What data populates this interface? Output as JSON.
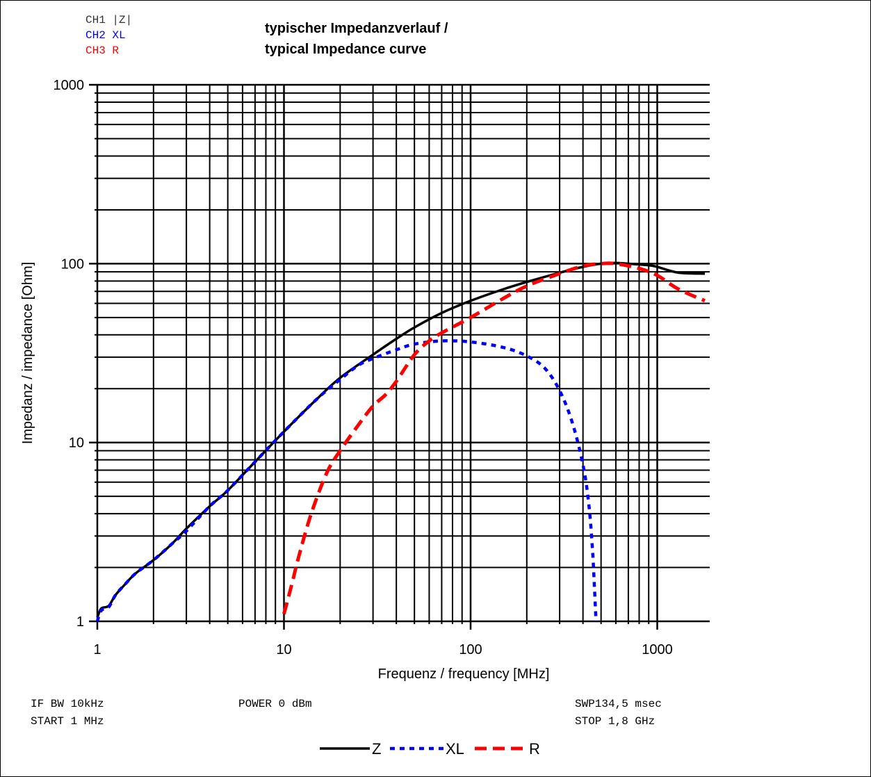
{
  "channels": {
    "ch1": "CH1 |Z|",
    "ch2": "CH2 XL",
    "ch3": "CH3 R"
  },
  "title_line1": "typischer Impedanzverlauf /",
  "title_line2": "typical Impedance curve",
  "settings": {
    "if_bw": "IF BW 10kHz",
    "start": "START 1 MHz",
    "power": "POWER 0 dBm",
    "sweep": "SWP134,5 msec",
    "stop": "STOP 1,8 GHz"
  },
  "colors": {
    "Z": "#000000",
    "XL": "#0000ff",
    "R": "#ff0000",
    "grid": "#000000"
  },
  "chart_data": {
    "type": "line",
    "title": "typischer Impedanzverlauf / typical Impedance curve",
    "xlabel": "Frequenz / frequency [MHz]",
    "ylabel": "Impedanz / impedance [Ohm]",
    "xscale": "log",
    "yscale": "log",
    "xlim": [
      1,
      1800
    ],
    "ylim": [
      1,
      1000
    ],
    "x_ticks": [
      "1",
      "10",
      "100",
      "1000"
    ],
    "y_ticks": [
      "1",
      "10",
      "100",
      "1000"
    ],
    "grid": true,
    "legend_position": "bottom-center",
    "series": [
      {
        "name": "Z",
        "style": "solid",
        "x": [
          1,
          1.05,
          1.15,
          1.25,
          1.4,
          1.6,
          2,
          2.5,
          3,
          4,
          5,
          7,
          10,
          15,
          20,
          30,
          40,
          50,
          70,
          100,
          150,
          200,
          300,
          400,
          500,
          600,
          700,
          900,
          1000,
          1300,
          1800
        ],
        "y": [
          1.05,
          1.18,
          1.22,
          1.4,
          1.6,
          1.85,
          2.2,
          2.7,
          3.3,
          4.4,
          5.4,
          7.8,
          11.5,
          17.5,
          23,
          31,
          38,
          44,
          53,
          62,
          72,
          79,
          89,
          96,
          100,
          101,
          100,
          98,
          96,
          89,
          88
        ]
      },
      {
        "name": "XL",
        "style": "dotted",
        "x": [
          1,
          1.05,
          1.15,
          1.25,
          1.4,
          1.6,
          2,
          2.5,
          3,
          4,
          5,
          7,
          10,
          15,
          20,
          25,
          30,
          40,
          50,
          70,
          100,
          150,
          200,
          250,
          300,
          350,
          400,
          430,
          450,
          460,
          470
        ],
        "y": [
          1.0,
          1.15,
          1.2,
          1.4,
          1.6,
          1.85,
          2.2,
          2.7,
          3.2,
          4.4,
          5.4,
          7.8,
          11.5,
          17.5,
          22.5,
          27,
          29.5,
          33,
          35.5,
          37,
          36.5,
          34,
          30.5,
          26,
          19.5,
          13,
          7.5,
          4.5,
          2.5,
          1.6,
          1.0
        ]
      },
      {
        "name": "R",
        "style": "dashed",
        "x": [
          10,
          11,
          12,
          14,
          17,
          20,
          25,
          30,
          35,
          40,
          50,
          60,
          70,
          100,
          150,
          200,
          300,
          400,
          500,
          600,
          800,
          1000,
          1300,
          1800
        ],
        "y": [
          1.1,
          1.6,
          2.3,
          4,
          6.8,
          9,
          12.5,
          16,
          18.5,
          22,
          31,
          37,
          41,
          50,
          64,
          75,
          88,
          97,
          100,
          100,
          94,
          86,
          72,
          62
        ]
      }
    ]
  }
}
